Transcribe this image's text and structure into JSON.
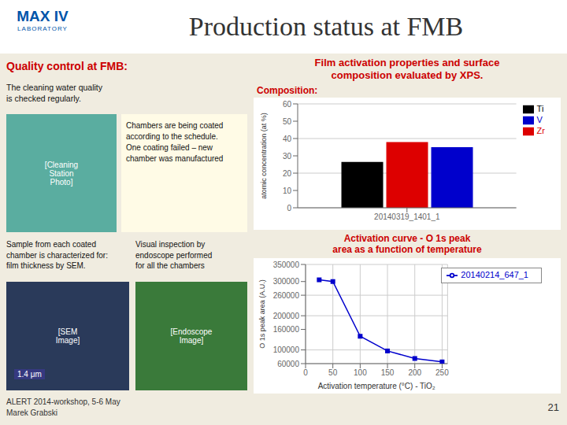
{
  "title": "Production status at FMB",
  "annotations": [
    "MAX IV",
    "LABORATORY",
    "Quality control at FMB:",
    "Film activation properties and surface\ncomposition evaluated by XPS.",
    "The cleaning water quality\nis checked regularly.",
    "[Cleaning\nStation\nPhoto]",
    "Chambers are being coated\naccording to the schedule.\nOne coating failed – new\nchamber was manufactured",
    "Sample from each coated\nchamber is characterized for:\nfilm thickness by SEM.",
    "[SEM\nImage]",
    "1.4 μm",
    "Visual inspection by\nendoscope performed\nfor all the chambers",
    "[Endoscope\nImage]",
    "ALERT 2014-workshop, 5-6 May\nMarek Grabski",
    "21"
  ],
  "chart_data": [
    {
      "type": "bar",
      "title": "Composition:",
      "categories": [
        "20140319_1401_1"
      ],
      "series": [
        {
          "name": "Ti",
          "color": "#000000",
          "values": [
            26.5
          ]
        },
        {
          "name": "Zr",
          "color": "#dd0000",
          "values": [
            38.0
          ]
        },
        {
          "name": "V",
          "color": "#0000cc",
          "values": [
            35.0
          ]
        }
      ],
      "ylabel": "atomic concentration (at %)",
      "ylim": [
        0,
        60
      ],
      "yticks": [
        0,
        10,
        20,
        30,
        40,
        50,
        60
      ],
      "grid": "y",
      "legend": "upper right"
    },
    {
      "type": "line",
      "title": "Activation curve - O 1s peak\narea as a function of temperature",
      "x": [
        25,
        50,
        100,
        150,
        200,
        250
      ],
      "series": [
        {
          "name": "20140214_647_1",
          "color": "#0000cc",
          "values": [
            305000,
            300000,
            140000,
            97000,
            75000,
            65000
          ],
          "marker": "square"
        }
      ],
      "xlabel": "Activation temperature (°C) - TiO₂",
      "ylabel": "O 1s peak area (A.U.)",
      "xlim": [
        0,
        260
      ],
      "xticks": [
        0,
        50,
        100,
        150,
        200,
        250
      ],
      "ylim": [
        60000,
        350000
      ],
      "yticks": [
        60000,
        100000,
        160000,
        200000,
        260000,
        300000,
        350000
      ],
      "grid": true,
      "legend": "upper right"
    }
  ]
}
